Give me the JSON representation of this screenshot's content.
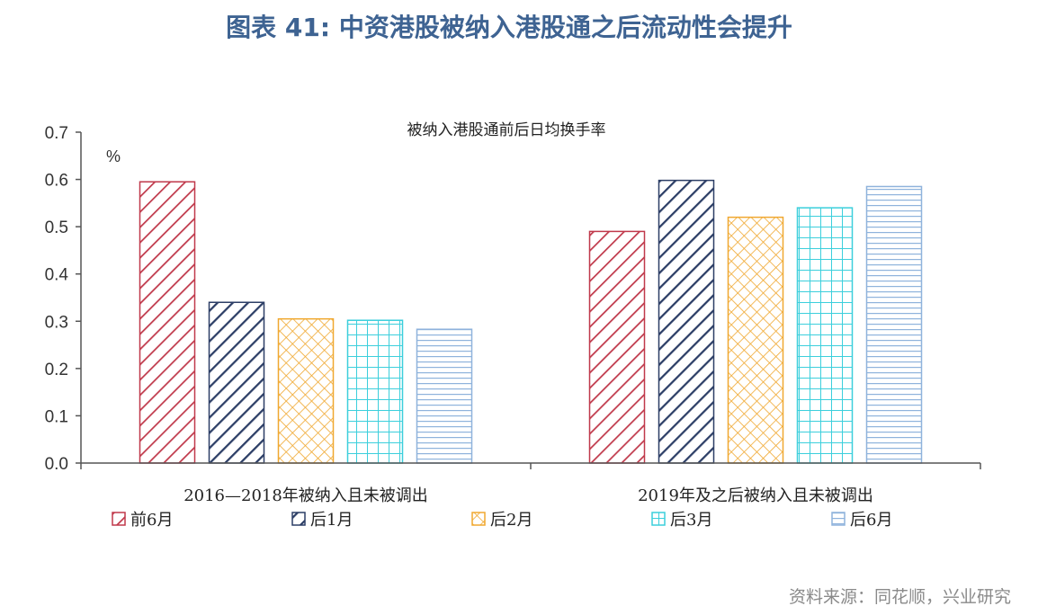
{
  "figure_title": "图表 41: 中资港股被纳入港股通之后流动性会提升",
  "source": "资料来源：同花顺，兴业研究",
  "chart_data": {
    "type": "bar",
    "title": "被纳入港股通前后日均换手率",
    "ylabel": "%",
    "ylim": [
      0,
      0.7
    ],
    "yticks": [
      "0.0",
      "0.1",
      "0.2",
      "0.3",
      "0.4",
      "0.5",
      "0.6",
      "0.7"
    ],
    "categories": [
      "2016—2018年被纳入且未被调出",
      "2019年及之后被纳入且未被调出"
    ],
    "series": [
      {
        "name": "前6月",
        "values": [
          0.595,
          0.49
        ],
        "color": "#c0394b",
        "pattern": "diag-right"
      },
      {
        "name": "后1月",
        "values": [
          0.34,
          0.598
        ],
        "color": "#2c3e66",
        "pattern": "diag-right-thick"
      },
      {
        "name": "后2月",
        "values": [
          0.305,
          0.52
        ],
        "color": "#f0a830",
        "pattern": "crosshatch"
      },
      {
        "name": "后3月",
        "values": [
          0.302,
          0.54
        ],
        "color": "#3ccfdc",
        "pattern": "grid"
      },
      {
        "name": "后6月",
        "values": [
          0.283,
          0.585
        ],
        "color": "#8fb3dc",
        "pattern": "horizontal"
      }
    ],
    "legend_position": "bottom",
    "grid": false
  }
}
